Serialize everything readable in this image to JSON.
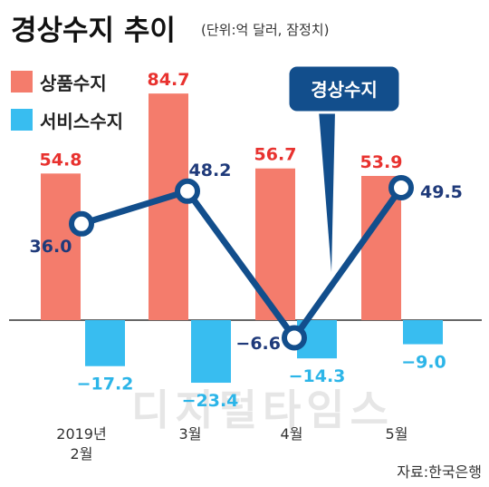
{
  "title": "경상수지 추이",
  "unit_note": "(단위:억 달러, 잠정치)",
  "source": "자료:한국은행",
  "watermark": "디지털타임스",
  "callout": "경상수지",
  "colors": {
    "goods": "#f47c6c",
    "services": "#38bdf0",
    "current": "#124e8c",
    "goods_label": "#e8322f",
    "services_label": "#2cb5e8",
    "current_label": "#1f3a7a"
  },
  "chart_data": {
    "type": "bar",
    "categories": [
      "2019년 2월",
      "3월",
      "4월",
      "5월"
    ],
    "category_lines": [
      [
        "2019년",
        "2월"
      ],
      [
        "3월"
      ],
      [
        "4월"
      ],
      [
        "5월"
      ]
    ],
    "series": [
      {
        "name": "상품수지",
        "type": "bar",
        "values": [
          54.8,
          84.7,
          56.7,
          53.9
        ],
        "labels": [
          "54.8",
          "84.7",
          "56.7",
          "53.9"
        ]
      },
      {
        "name": "서비스수지",
        "type": "bar",
        "values": [
          -17.2,
          -23.4,
          -14.3,
          -9.0
        ],
        "labels": [
          "−17.2",
          "−23.4",
          "−14.3",
          "−9.0"
        ]
      },
      {
        "name": "경상수지",
        "type": "line",
        "values": [
          36.0,
          48.2,
          -6.6,
          49.5
        ],
        "labels": [
          "36.0",
          "48.2",
          "−6.6",
          "49.5"
        ]
      }
    ],
    "grid": false,
    "legend": "top-left"
  }
}
